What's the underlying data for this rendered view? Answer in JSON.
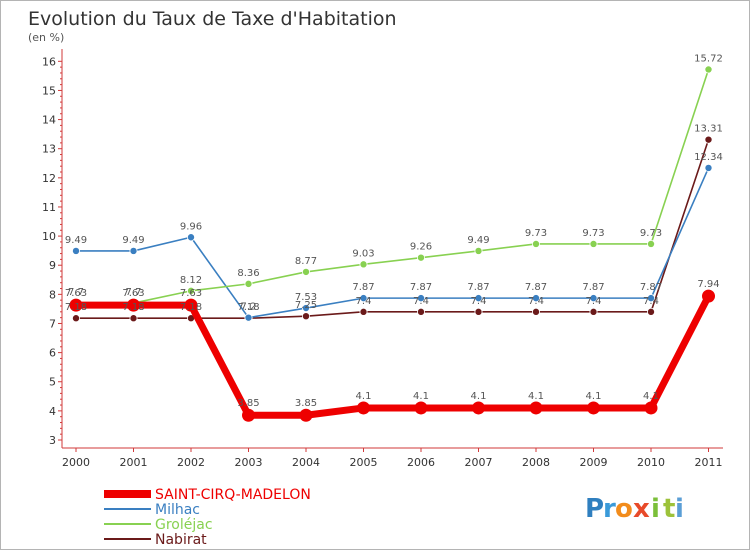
{
  "header": {
    "title": "Evolution du Taux de Taxe d'Habitation",
    "subtitle": "(en %)"
  },
  "brand": {
    "letters": [
      "P",
      "r",
      "o",
      "x",
      "i",
      "t",
      "i"
    ],
    "colors": [
      "#2f7fbf",
      "#3a9ad9",
      "#f28c1c",
      "#e84a2a",
      "#7bbf3a",
      "#9dc23a",
      "#5a9ed6"
    ]
  },
  "chart_data": {
    "type": "line",
    "title": "Evolution du Taux de Taxe d'Habitation",
    "ylabel": "(en %)",
    "xlabel": "",
    "x": [
      "2000",
      "2001",
      "2002",
      "2003",
      "2004",
      "2005",
      "2006",
      "2007",
      "2008",
      "2009",
      "2010",
      "2011"
    ],
    "ylim": [
      3,
      16
    ],
    "yticks": [
      "3",
      "4",
      "5",
      "6",
      "7",
      "8",
      "9",
      "10",
      "11",
      "12",
      "13",
      "14",
      "15",
      "16"
    ],
    "grid": false,
    "legend_position": "bottom-left",
    "series": [
      {
        "name": "Nabirat",
        "color": "#6b1a1a",
        "values": [
          7.18,
          7.18,
          7.18,
          7.18,
          7.25,
          7.4,
          7.4,
          7.4,
          7.4,
          7.4,
          7.4,
          13.31
        ],
        "labels": [
          "7.18",
          "7.18",
          "7.18",
          "7.18",
          "7.25",
          "7.4",
          "7.4",
          "7.4",
          "7.4",
          "7.4",
          "7.4",
          "13.31"
        ]
      },
      {
        "name": "Milhac",
        "color": "#3a7fc1",
        "values": [
          9.49,
          9.49,
          9.96,
          7.2,
          7.53,
          7.87,
          7.87,
          7.87,
          7.87,
          7.87,
          7.87,
          12.34
        ],
        "labels": [
          "9.49",
          "9.49",
          "9.96",
          "7.2",
          "7.53",
          "7.87",
          "7.87",
          "7.87",
          "7.87",
          "7.87",
          "7.87",
          "12.34"
        ]
      },
      {
        "name": "Groléjac",
        "color": "#88d151",
        "values": [
          7.7,
          7.7,
          8.12,
          8.36,
          8.77,
          9.03,
          9.26,
          9.49,
          9.73,
          9.73,
          9.73,
          15.72
        ],
        "labels": [
          "7.7",
          "7.7",
          "8.12",
          "8.36",
          "8.77",
          "9.03",
          "9.26",
          "9.49",
          "9.73",
          "9.73",
          "9.73",
          "15.72"
        ]
      },
      {
        "name": "SAINT-CIRQ-MADELON",
        "color": "#ee0000",
        "values": [
          7.63,
          7.63,
          7.63,
          3.85,
          3.85,
          4.1,
          4.1,
          4.1,
          4.1,
          4.1,
          4.1,
          7.94
        ],
        "labels": [
          "7.63",
          "7.63",
          "7.63",
          "3.85",
          "3.85",
          "4.1",
          "4.1",
          "4.1",
          "4.1",
          "4.1",
          "4.1",
          "7.94"
        ]
      }
    ],
    "legend": [
      "SAINT-CIRQ-MADELON",
      "Milhac",
      "Groléjac",
      "Nabirat"
    ]
  }
}
